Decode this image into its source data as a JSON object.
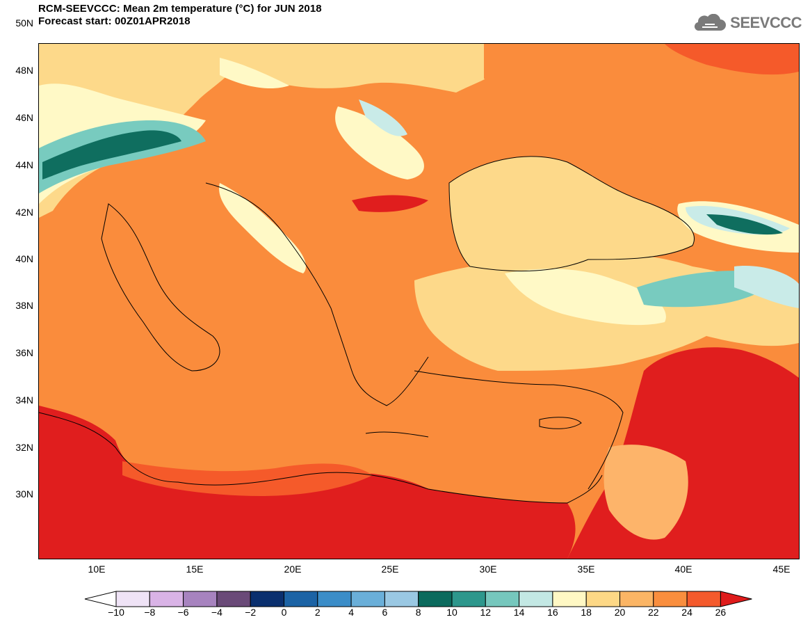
{
  "header": {
    "title_line1": "RCM-SEEVCCC: Mean 2m temperature (°C) for JUN 2018",
    "title_line2": "Forecast start: 00Z01APR2018",
    "logo_text": "SEEVCCC"
  },
  "map": {
    "lat_labels": [
      "50N",
      "48N",
      "46N",
      "44N",
      "42N",
      "40N",
      "38N",
      "36N",
      "34N",
      "32N",
      "30N"
    ],
    "lon_labels": [
      "10E",
      "15E",
      "20E",
      "25E",
      "30E",
      "35E",
      "40E",
      "45E"
    ],
    "colors": {
      "c10": "#c9ebe8",
      "c12": "#78cbbf",
      "c14": "#3da496",
      "c16": "#0f6e5f",
      "c18": "#fff9c6",
      "c20": "#fdd98a",
      "c22": "#fdb46a",
      "c24": "#fa8c3c",
      "c26": "#f55a2a",
      "c28": "#e01e1e",
      "water_border": "#000000"
    }
  },
  "colorbar": {
    "ticks": [
      "−10",
      "−8",
      "−6",
      "−4",
      "−2",
      "0",
      "2",
      "4",
      "6",
      "8",
      "10",
      "12",
      "14",
      "16",
      "18",
      "20",
      "22",
      "24",
      "26"
    ],
    "colors": [
      "#ffffff",
      "#efe3f6",
      "#d9b3e6",
      "#a783bf",
      "#6a4a78",
      "#0a2f6e",
      "#1c63a5",
      "#3b8dc8",
      "#6aafd9",
      "#9ac8e3",
      "#0b6a5d",
      "#2d978c",
      "#76c7bd",
      "#c3e8e4",
      "#fff8c4",
      "#fdd886",
      "#fbb565",
      "#f98e3e",
      "#f45a2c",
      "#df1c1c"
    ]
  }
}
